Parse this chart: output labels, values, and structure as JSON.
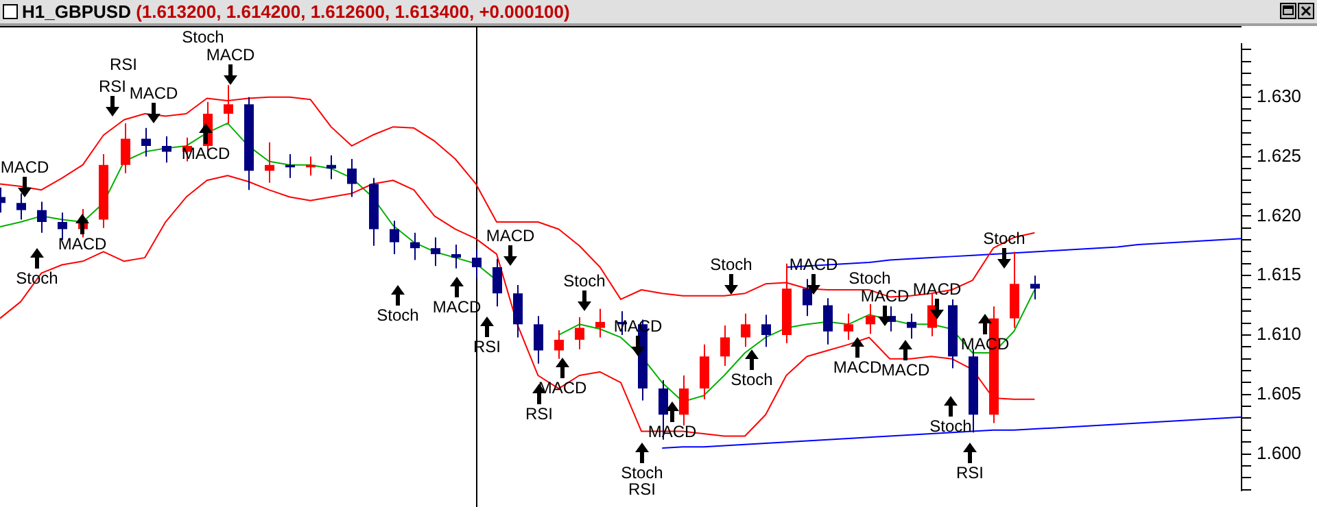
{
  "chart_data": {
    "type": "candlestick",
    "title": "H1_GBPUSD",
    "subtitle": "(1.613200, 1.614200, 1.612600, 1.613400, +0.000100)",
    "categories": [
      null,
      null,
      null,
      null,
      null,
      null,
      null,
      null,
      null,
      null,
      null,
      null,
      null,
      null,
      null,
      null,
      null,
      null,
      null,
      null,
      null,
      null,
      null,
      null,
      null,
      null,
      null,
      null,
      null,
      null,
      null,
      null,
      null,
      null,
      null,
      null,
      null,
      null,
      null,
      null,
      null,
      null,
      null,
      null,
      null,
      null,
      null,
      null,
      null,
      null,
      null,
      null,
      null,
      null,
      null,
      null,
      null,
      null,
      null,
      null,
      null
    ],
    "ylim": [
      1.5969,
      1.6345
    ],
    "yticks": [
      {
        "value": 1.597,
        "label": null
      },
      {
        "value": 1.598,
        "label": null
      },
      {
        "value": 1.599,
        "label": null
      },
      {
        "value": 1.6,
        "label": "1.600"
      },
      {
        "value": 1.601,
        "label": null
      },
      {
        "value": 1.602,
        "label": null
      },
      {
        "value": 1.603,
        "label": null
      },
      {
        "value": 1.604,
        "label": null
      },
      {
        "value": 1.605,
        "label": "1.605"
      },
      {
        "value": 1.606,
        "label": null
      },
      {
        "value": 1.607,
        "label": null
      },
      {
        "value": 1.608,
        "label": null
      },
      {
        "value": 1.609,
        "label": null
      },
      {
        "value": 1.61,
        "label": "1.610"
      },
      {
        "value": 1.611,
        "label": null
      },
      {
        "value": 1.612,
        "label": null
      },
      {
        "value": 1.613,
        "label": null
      },
      {
        "value": 1.614,
        "label": null
      },
      {
        "value": 1.615,
        "label": "1.615"
      },
      {
        "value": 1.616,
        "label": null
      },
      {
        "value": 1.617,
        "label": null
      },
      {
        "value": 1.618,
        "label": null
      },
      {
        "value": 1.619,
        "label": null
      },
      {
        "value": 1.62,
        "label": "1.620"
      },
      {
        "value": 1.621,
        "label": null
      },
      {
        "value": 1.622,
        "label": null
      },
      {
        "value": 1.623,
        "label": null
      },
      {
        "value": 1.624,
        "label": null
      },
      {
        "value": 1.625,
        "label": "1.625"
      },
      {
        "value": 1.626,
        "label": null
      },
      {
        "value": 1.627,
        "label": null
      },
      {
        "value": 1.628,
        "label": null
      },
      {
        "value": 1.629,
        "label": null
      },
      {
        "value": 1.63,
        "label": "1.630"
      },
      {
        "value": 1.631,
        "label": null
      },
      {
        "value": 1.632,
        "label": null
      },
      {
        "value": 1.633,
        "label": null
      },
      {
        "value": 1.634,
        "label": null
      }
    ],
    "tick_labels": "y",
    "series": [
      {
        "type": "line",
        "color": "#ff0000",
        "values": [
          1.6227,
          1.6225,
          1.6222,
          1.6232,
          1.6243,
          1.6268,
          1.6281,
          1.6286,
          1.6284,
          1.6286,
          1.6299,
          1.6297,
          1.6299,
          1.63,
          1.63,
          1.6298,
          1.6275,
          1.6259,
          1.6268,
          1.6275,
          1.6274,
          1.6263,
          1.6248,
          1.6227,
          1.6195,
          1.6195,
          1.6195,
          1.6189,
          1.6175,
          1.6157,
          1.613,
          1.6138,
          1.6135,
          1.6133,
          1.6133,
          1.6133,
          1.6135,
          1.6143,
          1.6144,
          1.6139,
          1.6138,
          1.6138,
          1.6138,
          1.6132,
          1.6133,
          1.6135,
          1.6138,
          1.6146,
          1.6173,
          1.6182,
          1.6186,
          null,
          null,
          null,
          null,
          null,
          null,
          null,
          null,
          null,
          null
        ]
      },
      {
        "type": "line",
        "color": "#ff0000",
        "values": [
          1.6114,
          1.6128,
          1.6152,
          1.6159,
          1.6162,
          1.617,
          1.6162,
          1.6165,
          1.6195,
          1.6216,
          1.623,
          1.6234,
          1.6229,
          1.6222,
          1.6216,
          1.6213,
          1.6216,
          1.6219,
          1.6227,
          1.623,
          1.6222,
          1.62,
          1.6189,
          1.6181,
          1.6168,
          1.6109,
          1.6066,
          1.6055,
          1.6066,
          1.6069,
          1.606,
          1.6019,
          1.6019,
          1.6019,
          1.6017,
          1.6015,
          1.6015,
          1.6033,
          1.6066,
          1.6082,
          1.6087,
          1.6092,
          1.6098,
          1.608,
          1.608,
          1.6082,
          1.608,
          1.6071,
          1.6047,
          1.6046,
          1.6046,
          null,
          null,
          null,
          null,
          null,
          null,
          null,
          null,
          null,
          null
        ]
      },
      {
        "type": "line",
        "color": "#00b000",
        "values": [
          1.6191,
          1.6195,
          1.62,
          1.6197,
          1.6195,
          1.6211,
          1.6246,
          1.6254,
          1.6257,
          1.6259,
          1.627,
          1.6278,
          1.6259,
          1.6246,
          1.6243,
          1.6243,
          1.624,
          1.6232,
          1.6216,
          1.6192,
          1.6178,
          1.617,
          1.6165,
          1.616,
          1.6146,
          null,
          null,
          1.61,
          1.6109,
          1.6105,
          1.6098,
          1.6082,
          1.606,
          1.6044,
          1.6049,
          1.6066,
          1.6085,
          1.6098,
          1.6106,
          1.6109,
          1.6111,
          1.6109,
          1.6117,
          1.6113,
          1.6109,
          1.6109,
          1.6105,
          1.6085,
          1.6085,
          1.6103,
          1.6138,
          null,
          null,
          null,
          null,
          null,
          null,
          null,
          null,
          null,
          null
        ]
      },
      {
        "type": "line",
        "color": "#0000ff",
        "values": [
          null,
          null,
          null,
          null,
          null,
          null,
          null,
          null,
          null,
          null,
          null,
          null,
          null,
          null,
          null,
          null,
          null,
          null,
          null,
          null,
          null,
          null,
          null,
          null,
          null,
          null,
          null,
          null,
          null,
          null,
          null,
          null,
          null,
          null,
          null,
          null,
          null,
          null,
          1.6157,
          1.6158,
          1.6159,
          1.616,
          1.6161,
          1.6163,
          1.6164,
          1.6165,
          1.6166,
          1.6167,
          1.6168,
          1.6169,
          1.617,
          1.6171,
          1.6172,
          1.6173,
          1.6174,
          1.6176,
          1.6177,
          1.6178,
          1.6179,
          1.618,
          1.6181
        ]
      },
      {
        "type": "line",
        "color": "#0000ff",
        "values": [
          null,
          null,
          null,
          null,
          null,
          null,
          null,
          null,
          null,
          null,
          null,
          null,
          null,
          null,
          null,
          null,
          null,
          null,
          null,
          null,
          null,
          null,
          null,
          null,
          null,
          null,
          null,
          null,
          null,
          null,
          null,
          null,
          1.6005,
          1.6006,
          1.6006,
          1.6007,
          1.6008,
          1.6009,
          1.601,
          1.6011,
          1.6012,
          1.6013,
          1.6014,
          1.6015,
          1.6016,
          1.6017,
          1.6018,
          1.6019,
          1.602,
          1.602,
          1.6021,
          1.6022,
          1.6023,
          1.6024,
          1.6025,
          1.6026,
          1.6027,
          1.6028,
          1.6029,
          1.603,
          1.6031
        ]
      },
      {
        "ohlc": [
          [
            1.6216,
            1.6224,
            1.6203,
            1.6211
          ],
          [
            1.6211,
            1.6219,
            1.6197,
            1.6205
          ],
          [
            1.6205,
            1.6212,
            1.6186,
            1.6195
          ],
          [
            1.6195,
            1.6203,
            1.618,
            1.6189
          ],
          [
            1.6189,
            1.6206,
            1.6182,
            1.6197
          ],
          [
            1.6197,
            1.6252,
            1.619,
            1.6243
          ],
          [
            1.6243,
            1.6278,
            1.6236,
            1.6265
          ],
          [
            1.6265,
            1.6274,
            1.625,
            1.6259
          ],
          [
            1.6259,
            1.6267,
            1.6245,
            1.6254
          ],
          [
            1.6254,
            1.6266,
            1.6246,
            1.6259
          ],
          [
            1.6259,
            1.6296,
            1.6251,
            1.6286
          ],
          [
            1.6286,
            1.631,
            1.6278,
            1.6294
          ],
          [
            1.6294,
            1.63,
            1.6222,
            1.6238
          ],
          [
            1.6238,
            1.6262,
            1.6228,
            1.6243
          ],
          [
            1.6243,
            1.6252,
            1.6232,
            1.6241
          ],
          [
            1.6241,
            1.625,
            1.6234,
            1.6243
          ],
          [
            1.6243,
            1.6251,
            1.6231,
            1.624
          ],
          [
            1.624,
            1.6248,
            1.6216,
            1.6227
          ],
          [
            1.6227,
            1.6232,
            1.6175,
            1.6189
          ],
          [
            1.6189,
            1.6196,
            1.6168,
            1.6178
          ],
          [
            1.6178,
            1.6186,
            1.6163,
            1.6173
          ],
          [
            1.6173,
            1.6182,
            1.6158,
            1.6168
          ],
          [
            1.6168,
            1.6176,
            1.6156,
            1.6165
          ],
          [
            1.6165,
            1.6172,
            1.6148,
            1.6157
          ],
          [
            1.6157,
            1.6164,
            1.6124,
            1.6135
          ],
          [
            1.6135,
            1.6142,
            1.6098,
            1.6109
          ],
          [
            1.6109,
            1.6116,
            1.6076,
            1.6087
          ],
          [
            1.6087,
            1.6104,
            1.608,
            1.6096
          ],
          [
            1.6096,
            1.6115,
            1.6088,
            1.6106
          ],
          [
            1.6106,
            1.6122,
            1.6098,
            1.6111
          ],
          [
            1.6111,
            1.612,
            1.61,
            1.6109
          ],
          [
            1.6109,
            1.6113,
            1.6045,
            1.6055
          ],
          [
            1.6055,
            1.6062,
            1.6012,
            1.6033
          ],
          [
            1.6033,
            1.6066,
            1.6024,
            1.6055
          ],
          [
            1.6055,
            1.6092,
            1.6046,
            1.6082
          ],
          [
            1.6082,
            1.6108,
            1.6074,
            1.6098
          ],
          [
            1.6098,
            1.6118,
            1.609,
            1.6109
          ],
          [
            1.6109,
            1.6117,
            1.609,
            1.61
          ],
          [
            1.61,
            1.616,
            1.6093,
            1.6139
          ],
          [
            1.6139,
            1.6147,
            1.6116,
            1.6125
          ],
          [
            1.6125,
            1.6131,
            1.6092,
            1.6103
          ],
          [
            1.6103,
            1.6118,
            1.6096,
            1.6109
          ],
          [
            1.6109,
            1.6126,
            1.6101,
            1.6116
          ],
          [
            1.6116,
            1.6124,
            1.6103,
            1.6111
          ],
          [
            1.6111,
            1.6118,
            1.6097,
            1.6106
          ],
          [
            1.6106,
            1.6135,
            1.6099,
            1.6125
          ],
          [
            1.6125,
            1.613,
            1.6072,
            1.6082
          ],
          [
            1.6082,
            1.6088,
            1.6018,
            1.6033
          ],
          [
            1.6033,
            1.6124,
            1.6026,
            1.6114
          ],
          [
            1.6114,
            1.617,
            1.6106,
            1.6143
          ],
          [
            1.6143,
            1.615,
            1.613,
            1.6139
          ],
          null,
          null,
          null,
          null,
          null,
          null,
          null,
          null,
          null,
          null
        ],
        "colors": [
          "#000080",
          "#000080",
          "#000080",
          "#000080",
          "#ff0000",
          "#ff0000",
          "#ff0000",
          "#000080",
          "#000080",
          "#ff0000",
          "#ff0000",
          "#ff0000",
          "#000080",
          "#ff0000",
          "#000080",
          "#ff0000",
          "#000080",
          "#000080",
          "#000080",
          "#000080",
          "#000080",
          "#000080",
          "#000080",
          "#000080",
          "#000080",
          "#000080",
          "#000080",
          "#ff0000",
          "#ff0000",
          "#ff0000",
          "#000080",
          "#000080",
          "#000080",
          "#ff0000",
          "#ff0000",
          "#ff0000",
          "#ff0000",
          "#000080",
          "#ff0000",
          "#000080",
          "#000080",
          "#ff0000",
          "#ff0000",
          "#000080",
          "#000080",
          "#ff0000",
          "#000080",
          "#000080",
          "#ff0000",
          "#ff0000",
          "#000080",
          null,
          null,
          null,
          null,
          null,
          null,
          null,
          null,
          null,
          null
        ]
      }
    ],
    "annotations": [
      "MACD",
      "Stoch",
      "MACD",
      "RSI",
      "RSI",
      "MACD",
      "Stoch",
      "MACD",
      "MACD",
      "Stoch",
      "MACD",
      "MACD",
      "RSI",
      "Stoch",
      "MACD",
      "RSI",
      "MACD",
      "MACD",
      "Stoch",
      "RSI",
      "Stoch",
      "Stoch",
      "MACD",
      "Stoch",
      "MACD",
      "MACD",
      "MACD",
      "MACD",
      "Stoch",
      "RSI",
      "MACD",
      "Stoch"
    ]
  }
}
